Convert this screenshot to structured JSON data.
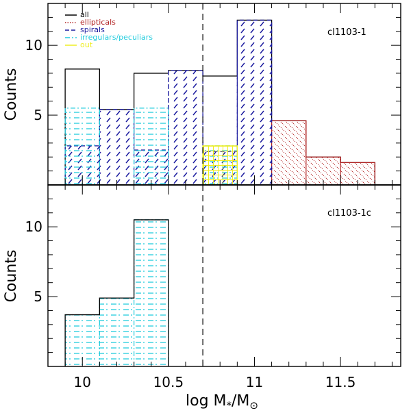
{
  "chart_data": {
    "type": "bar",
    "xlabel_main": "log M",
    "xlabel_sub1": "*",
    "xlabel_mid": "/M",
    "xlabel_sub2": "⊙",
    "xlim": [
      9.8,
      11.85
    ],
    "x_ticks": [
      10,
      10.5,
      11,
      11.5
    ],
    "x_tick_labels": [
      "10",
      "10.5",
      "11",
      "11.5"
    ],
    "vline_x": 10.7,
    "colors": {
      "all": "#000000",
      "ellipticals": "#b22222",
      "spirals": "#1a1a9e",
      "irregulars": "#22ccdd",
      "out": "#eeee22"
    },
    "panels": [
      {
        "id": "top",
        "label": "cl1103-1",
        "ylabel": "Counts",
        "ylim": [
          0,
          13
        ],
        "y_ticks": [
          5,
          10
        ],
        "y_tick_labels": [
          "5",
          "10"
        ],
        "legend": [
          {
            "key": "all",
            "label": "all"
          },
          {
            "key": "ellipticals",
            "label": "ellipticals"
          },
          {
            "key": "spirals",
            "label": "spirals"
          },
          {
            "key": "irregulars",
            "label": "irregulars/peculiars"
          },
          {
            "key": "out",
            "label": "out"
          }
        ],
        "series": [
          {
            "name": "all",
            "style": "outline",
            "bins": [
              [
                9.9,
                10.1,
                8.3
              ],
              [
                10.1,
                10.3,
                5.4
              ],
              [
                10.3,
                10.5,
                8.0
              ],
              [
                10.5,
                10.7,
                8.2
              ],
              [
                10.7,
                10.9,
                7.8
              ],
              [
                10.9,
                11.1,
                11.8
              ],
              [
                11.1,
                11.3,
                4.6
              ],
              [
                11.3,
                11.5,
                2.0
              ],
              [
                11.5,
                11.7,
                1.6
              ]
            ]
          },
          {
            "name": "ellipticals",
            "style": "dotdiag",
            "bins": [
              [
                11.1,
                11.3,
                4.6
              ],
              [
                11.3,
                11.5,
                2.0
              ],
              [
                11.5,
                11.7,
                1.6
              ]
            ]
          },
          {
            "name": "spirals",
            "style": "dashdiag",
            "bins": [
              [
                9.9,
                10.1,
                2.8
              ],
              [
                10.1,
                10.3,
                5.4
              ],
              [
                10.3,
                10.5,
                2.5
              ],
              [
                10.5,
                10.7,
                8.2
              ],
              [
                10.7,
                10.9,
                2.4
              ],
              [
                10.9,
                11.1,
                11.8
              ]
            ]
          },
          {
            "name": "irregulars",
            "style": "dashhoriz",
            "bins": [
              [
                9.9,
                10.1,
                5.5
              ],
              [
                10.3,
                10.5,
                5.5
              ],
              [
                10.7,
                10.9,
                2.8
              ]
            ]
          },
          {
            "name": "out",
            "style": "grid",
            "bins": [
              [
                10.7,
                10.9,
                2.8
              ]
            ]
          }
        ]
      },
      {
        "id": "bottom",
        "label": "cl1103-1c",
        "ylabel": "Counts",
        "ylim": [
          0,
          13
        ],
        "y_ticks": [
          5,
          10
        ],
        "y_tick_labels": [
          "5",
          "10"
        ],
        "series": [
          {
            "name": "irregulars",
            "style": "dashhoriz",
            "bins": [
              [
                9.9,
                10.1,
                3.7
              ],
              [
                10.1,
                10.3,
                4.9
              ],
              [
                10.3,
                10.5,
                10.5
              ]
            ]
          },
          {
            "name": "all",
            "style": "outline",
            "bins": [
              [
                9.9,
                10.1,
                3.7
              ],
              [
                10.1,
                10.3,
                4.9
              ],
              [
                10.3,
                10.5,
                10.5
              ]
            ]
          }
        ]
      }
    ]
  }
}
